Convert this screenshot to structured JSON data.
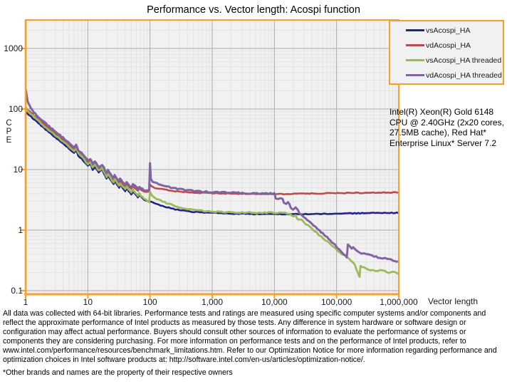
{
  "chart_data": {
    "type": "line",
    "title": "Performance vs. Vector length: Acospi function",
    "xlabel": "Vector length",
    "ylabel": "CPE",
    "x_scale": "log",
    "y_scale": "log",
    "xlim": [
      1,
      1000000
    ],
    "ylim": [
      0.085,
      2950
    ],
    "grid": "major and minor log gridlines, both axes",
    "legend_position": "top-right",
    "frame_color": "#FAA029",
    "plot_bg_color": "#F1F1F1",
    "x_ticks": [
      {
        "value": 1,
        "label": "1"
      },
      {
        "value": 10,
        "label": "10"
      },
      {
        "value": 100,
        "label": "100"
      },
      {
        "value": 1000,
        "label": "1,000"
      },
      {
        "value": 10000,
        "label": "10,000"
      },
      {
        "value": 100000,
        "label": "100,000"
      },
      {
        "value": 1000000,
        "label": "1,000,000"
      }
    ],
    "y_ticks": [
      {
        "value": 1000,
        "label": "1000"
      },
      {
        "value": 100,
        "label": "100"
      },
      {
        "value": 10,
        "label": "10"
      },
      {
        "value": 1,
        "label": "1"
      },
      {
        "value": 0.1,
        "label": "0.1"
      }
    ],
    "series": [
      {
        "name": "vsAcospi_HA",
        "color": "#22238B",
        "points": [
          [
            1,
            90
          ],
          [
            1.5,
            62
          ],
          [
            2,
            48
          ],
          [
            3,
            34
          ],
          [
            4,
            27
          ],
          [
            5,
            22
          ],
          [
            6,
            19
          ],
          [
            6.5,
            21
          ],
          [
            7,
            17
          ],
          [
            8,
            15
          ],
          [
            10,
            11.5
          ],
          [
            11,
            12.5
          ],
          [
            12,
            10
          ],
          [
            13,
            11.2
          ],
          [
            15,
            9
          ],
          [
            17,
            10
          ],
          [
            20,
            7
          ],
          [
            21,
            7.9
          ],
          [
            26,
            5.7
          ],
          [
            27,
            6.5
          ],
          [
            32,
            5
          ],
          [
            33,
            5.7
          ],
          [
            40,
            4.4
          ],
          [
            42,
            4.9
          ],
          [
            50,
            3.9
          ],
          [
            53,
            4.3
          ],
          [
            64,
            3.5
          ],
          [
            67,
            3.8
          ],
          [
            80,
            3.2
          ],
          [
            90,
            3.05
          ],
          [
            100,
            2.95
          ],
          [
            128,
            2.7
          ],
          [
            160,
            2.5
          ],
          [
            200,
            2.35
          ],
          [
            256,
            2.2
          ],
          [
            320,
            2.12
          ],
          [
            400,
            2.06
          ],
          [
            512,
            2.0
          ],
          [
            640,
            1.97
          ],
          [
            800,
            1.95
          ],
          [
            1000,
            1.93
          ],
          [
            2000,
            1.88
          ],
          [
            4000,
            1.85
          ],
          [
            8000,
            1.84
          ],
          [
            16000,
            1.83
          ],
          [
            32000,
            1.84
          ],
          [
            64000,
            1.86
          ],
          [
            128000,
            1.88
          ],
          [
            256000,
            1.9
          ],
          [
            512000,
            1.92
          ],
          [
            1000000,
            1.93
          ]
        ]
      },
      {
        "name": "vdAcospi_HA",
        "color": "#BE4B48",
        "points": [
          [
            1,
            105
          ],
          [
            1.5,
            72
          ],
          [
            2,
            56
          ],
          [
            3,
            40
          ],
          [
            4,
            31
          ],
          [
            5,
            25.5
          ],
          [
            6,
            22
          ],
          [
            6.5,
            24
          ],
          [
            7,
            19.5
          ],
          [
            8,
            17.2
          ],
          [
            10,
            13.2
          ],
          [
            11,
            14.2
          ],
          [
            12,
            11.4
          ],
          [
            13,
            12.8
          ],
          [
            15,
            10.3
          ],
          [
            17,
            11.4
          ],
          [
            20,
            8.1
          ],
          [
            21,
            9.1
          ],
          [
            26,
            6.6
          ],
          [
            27,
            7.5
          ],
          [
            32,
            5.8
          ],
          [
            33,
            6.6
          ],
          [
            40,
            5.2
          ],
          [
            42,
            5.8
          ],
          [
            50,
            4.8
          ],
          [
            53,
            5.3
          ],
          [
            64,
            4.5
          ],
          [
            67,
            4.9
          ],
          [
            80,
            4.35
          ],
          [
            90,
            4.3
          ],
          [
            97,
            4.4
          ],
          [
            100,
            5.7
          ],
          [
            105,
            5.4
          ],
          [
            120,
            5.0
          ],
          [
            150,
            4.8
          ],
          [
            200,
            4.55
          ],
          [
            256,
            4.4
          ],
          [
            320,
            4.3
          ],
          [
            400,
            4.25
          ],
          [
            512,
            4.18
          ],
          [
            640,
            4.12
          ],
          [
            800,
            4.1
          ],
          [
            1000,
            4.07
          ],
          [
            2000,
            4.0
          ],
          [
            4000,
            3.97
          ],
          [
            8000,
            3.95
          ],
          [
            16000,
            3.96
          ],
          [
            32000,
            4.0
          ],
          [
            64000,
            4.05
          ],
          [
            128000,
            4.1
          ],
          [
            256000,
            4.12
          ],
          [
            512000,
            4.15
          ],
          [
            1000000,
            4.2
          ]
        ]
      },
      {
        "name": "vsAcospi_HA threaded",
        "color": "#9BBB59",
        "points": [
          [
            1,
            100
          ],
          [
            1.5,
            68
          ],
          [
            2,
            52
          ],
          [
            3,
            37
          ],
          [
            4,
            29
          ],
          [
            5,
            24
          ],
          [
            6,
            20.5
          ],
          [
            6.5,
            22.5
          ],
          [
            7,
            18.5
          ],
          [
            8,
            16.2
          ],
          [
            10,
            12.4
          ],
          [
            11,
            13.4
          ],
          [
            12,
            10.7
          ],
          [
            13,
            12
          ],
          [
            15,
            9.6
          ],
          [
            17,
            10.7
          ],
          [
            20,
            7.6
          ],
          [
            21,
            8.5
          ],
          [
            26,
            6.1
          ],
          [
            27,
            7
          ],
          [
            32,
            5.3
          ],
          [
            33,
            6
          ],
          [
            40,
            4.7
          ],
          [
            42,
            5.2
          ],
          [
            50,
            4.1
          ],
          [
            53,
            4.6
          ],
          [
            64,
            3.7
          ],
          [
            67,
            4.0
          ],
          [
            80,
            3.3
          ],
          [
            90,
            3.1
          ],
          [
            97,
            2.95
          ],
          [
            100,
            4.3
          ],
          [
            104,
            3.85
          ],
          [
            110,
            3.6
          ],
          [
            128,
            3.3
          ],
          [
            160,
            2.95
          ],
          [
            200,
            2.7
          ],
          [
            256,
            2.5
          ],
          [
            320,
            2.35
          ],
          [
            400,
            2.25
          ],
          [
            512,
            2.15
          ],
          [
            640,
            2.1
          ],
          [
            800,
            2.05
          ],
          [
            1000,
            2.02
          ],
          [
            2000,
            1.97
          ],
          [
            4000,
            1.95
          ],
          [
            8000,
            1.94
          ],
          [
            12000,
            1.93
          ],
          [
            16000,
            1.9
          ],
          [
            18000,
            1.87
          ],
          [
            19000,
            1.7
          ],
          [
            22000,
            1.72
          ],
          [
            24000,
            1.5
          ],
          [
            27000,
            1.52
          ],
          [
            30000,
            1.32
          ],
          [
            35000,
            1.18
          ],
          [
            40000,
            1.05
          ],
          [
            45000,
            0.95
          ],
          [
            50000,
            0.87
          ],
          [
            60000,
            0.74
          ],
          [
            70000,
            0.65
          ],
          [
            80000,
            0.58
          ],
          [
            90000,
            0.52
          ],
          [
            100000,
            0.47
          ],
          [
            120000,
            0.41
          ],
          [
            140000,
            0.38
          ],
          [
            160000,
            0.33
          ],
          [
            180000,
            0.3
          ],
          [
            200000,
            0.26
          ],
          [
            215000,
            0.21
          ],
          [
            228000,
            0.18
          ],
          [
            235000,
            0.17
          ],
          [
            242000,
            0.26
          ],
          [
            260000,
            0.25
          ],
          [
            300000,
            0.23
          ],
          [
            350000,
            0.22
          ],
          [
            420000,
            0.21
          ],
          [
            500000,
            0.22
          ],
          [
            600000,
            0.21
          ],
          [
            700000,
            0.2
          ],
          [
            850000,
            0.2
          ],
          [
            1000000,
            0.19
          ]
        ]
      },
      {
        "name": "vdAcospi_HA threaded",
        "color": "#8064A2",
        "points": [
          [
            1,
            215
          ],
          [
            1.08,
            130
          ],
          [
            1.3,
            92
          ],
          [
            1.5,
            79
          ],
          [
            2,
            60
          ],
          [
            3,
            43
          ],
          [
            4,
            33.5
          ],
          [
            5,
            27.5
          ],
          [
            6,
            23.5
          ],
          [
            6.5,
            25.5
          ],
          [
            7,
            21
          ],
          [
            8,
            18.5
          ],
          [
            10,
            14.2
          ],
          [
            11,
            15.2
          ],
          [
            12,
            12.2
          ],
          [
            13,
            13.7
          ],
          [
            15,
            11
          ],
          [
            17,
            12.2
          ],
          [
            20,
            8.8
          ],
          [
            21,
            9.8
          ],
          [
            26,
            7.2
          ],
          [
            27,
            8.1
          ],
          [
            32,
            6.3
          ],
          [
            33,
            7.1
          ],
          [
            40,
            5.6
          ],
          [
            42,
            6.2
          ],
          [
            50,
            5.1
          ],
          [
            53,
            5.7
          ],
          [
            64,
            4.8
          ],
          [
            67,
            5.2
          ],
          [
            80,
            4.6
          ],
          [
            90,
            4.5
          ],
          [
            97,
            4.55
          ],
          [
            100,
            13
          ],
          [
            103,
            7.2
          ],
          [
            110,
            6.3
          ],
          [
            128,
            5.9
          ],
          [
            160,
            5.5
          ],
          [
            200,
            5.15
          ],
          [
            256,
            4.9
          ],
          [
            320,
            4.7
          ],
          [
            400,
            4.55
          ],
          [
            512,
            4.45
          ],
          [
            640,
            4.35
          ],
          [
            800,
            4.3
          ],
          [
            1000,
            4.25
          ],
          [
            2000,
            4.15
          ],
          [
            4000,
            4.08
          ],
          [
            6000,
            4.05
          ],
          [
            8000,
            4.02
          ],
          [
            10000,
            4.0
          ],
          [
            10600,
            3.35
          ],
          [
            11500,
            3.3
          ],
          [
            12500,
            3.45
          ],
          [
            13500,
            3.3
          ],
          [
            14200,
            2.8
          ],
          [
            15500,
            2.72
          ],
          [
            16500,
            2.85
          ],
          [
            17500,
            2.68
          ],
          [
            18500,
            2.3
          ],
          [
            20000,
            2.2
          ],
          [
            22000,
            2.32
          ],
          [
            24000,
            2.1
          ],
          [
            26000,
            1.85
          ],
          [
            30000,
            1.65
          ],
          [
            35000,
            1.45
          ],
          [
            40000,
            1.3
          ],
          [
            45000,
            1.15
          ],
          [
            50000,
            1.05
          ],
          [
            60000,
            0.88
          ],
          [
            70000,
            0.76
          ],
          [
            80000,
            0.67
          ],
          [
            90000,
            0.6
          ],
          [
            100000,
            0.54
          ],
          [
            110000,
            0.48
          ],
          [
            120000,
            0.44
          ],
          [
            130000,
            0.4
          ],
          [
            140000,
            0.37
          ],
          [
            146000,
            0.36
          ],
          [
            152000,
            0.57
          ],
          [
            165000,
            0.54
          ],
          [
            175000,
            0.5
          ],
          [
            185000,
            0.52
          ],
          [
            200000,
            0.48
          ],
          [
            220000,
            0.44
          ],
          [
            250000,
            0.42
          ],
          [
            300000,
            0.4
          ],
          [
            350000,
            0.38
          ],
          [
            400000,
            0.37
          ],
          [
            500000,
            0.35
          ],
          [
            600000,
            0.34
          ],
          [
            800000,
            0.32
          ],
          [
            1000000,
            0.3
          ]
        ]
      }
    ]
  },
  "info_box": {
    "text": "Intel(R) Xeon(R) Gold 6148 CPU @ 2.40GHz (2x20 cores, 27.5MB cache), Red Hat* Enterprise Linux* Server 7.2"
  },
  "footer": {
    "disclaimer": "All data was collected with 64-bit libraries. Performance tests and ratings are measured using specific computer systems and/or components and reflect the approximate performance of Intel products as measured by those tests. Any difference in system hardware or software design or configuration may affect actual performance. Buyers should consult other sources of information to evaluate the performance of systems or components they are considering purchasing. For more information on performance tests and on the performance of Intel products, refer to www.intel.com/performance/resources/benchmark_limitations.htm.  Refer to our Optimization Notice for more information regarding performance and optimization choices in Intel software products at: http://software.intel.com/en-us/articles/optimization-notice/.",
    "footnote": "*Other brands and names are the property of their respective owners"
  }
}
